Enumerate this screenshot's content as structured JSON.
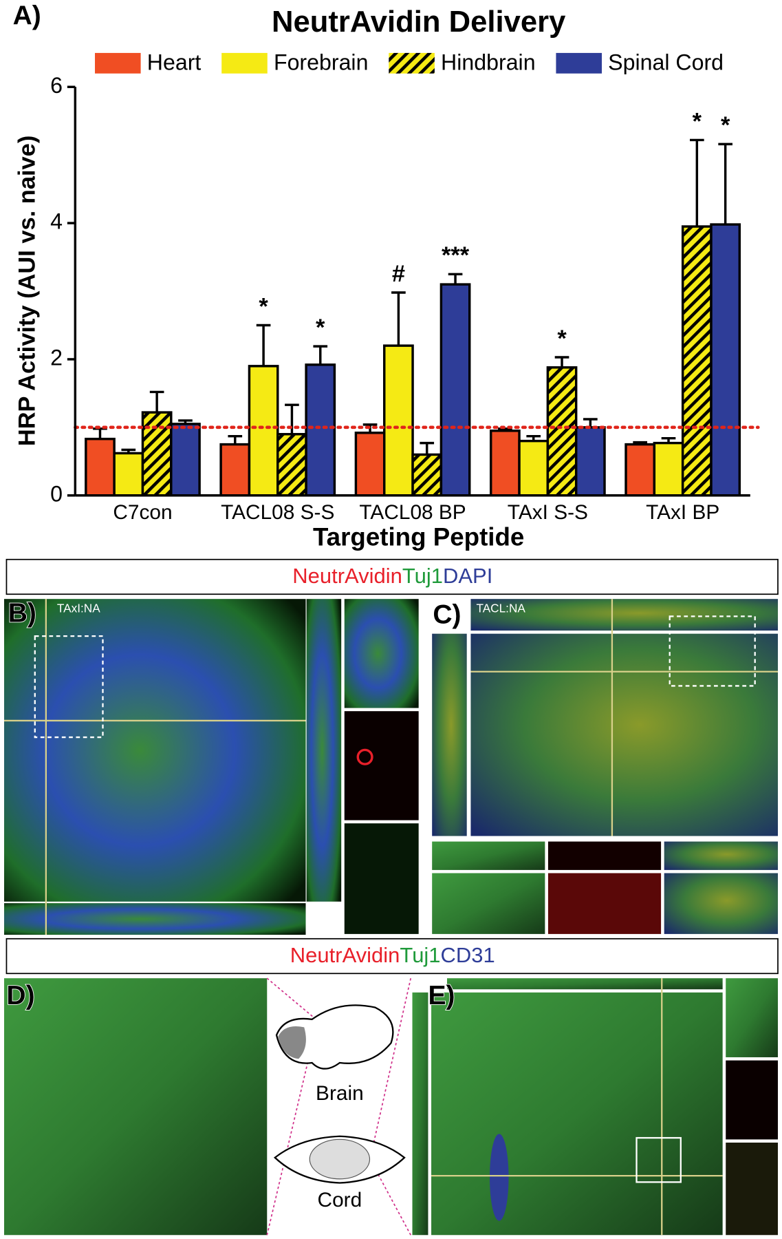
{
  "chart_data": {
    "type": "bar",
    "panel_label": "A)",
    "title": "NeutrAvidin Delivery",
    "x_label": "Targeting Peptide",
    "y_label": "HRP Activity (AUI vs. naive)",
    "categories": [
      "C7con",
      "TACL08 S-S",
      "TACL08 BP",
      "TAxI S-S",
      "TAxI BP"
    ],
    "series": [
      {
        "name": "Heart",
        "color": "#f04e23",
        "values": [
          0.83,
          0.75,
          0.92,
          0.95,
          0.75
        ],
        "errors": [
          0.15,
          0.12,
          0.12,
          0.03,
          0.03
        ],
        "markers": [
          null,
          null,
          null,
          null,
          null
        ]
      },
      {
        "name": "Forebrain",
        "color": "#f5ea14",
        "values": [
          0.62,
          1.9,
          2.2,
          0.8,
          0.77
        ],
        "errors": [
          0.05,
          0.6,
          0.78,
          0.07,
          0.07
        ],
        "markers": [
          null,
          "*",
          "#",
          null,
          null
        ]
      },
      {
        "name": "Hindbrain",
        "color": "#f5ea14",
        "hatch": true,
        "values": [
          1.22,
          0.9,
          0.6,
          1.88,
          3.95
        ],
        "errors": [
          0.3,
          0.43,
          0.17,
          0.15,
          1.27
        ],
        "markers": [
          null,
          null,
          null,
          "*",
          "*"
        ]
      },
      {
        "name": "Spinal Cord",
        "color": "#2e3d98",
        "values": [
          1.05,
          1.92,
          3.1,
          1.0,
          3.98
        ],
        "errors": [
          0.05,
          0.27,
          0.15,
          0.12,
          1.18
        ],
        "markers": [
          null,
          "*",
          "***",
          null,
          "*"
        ]
      }
    ],
    "ylim": [
      0,
      6
    ],
    "yticks": [
      0,
      2,
      4,
      6
    ],
    "reference_line": 1,
    "reference_color": "#e0251b"
  },
  "headers": [
    [
      "NeutrAvidin",
      "Tuj1",
      "DAPI"
    ],
    [
      "NeutrAvidin",
      "Tuj1",
      "CD31"
    ]
  ],
  "panels": {
    "b": {
      "label": "B)",
      "tag": "TAxI:NA"
    },
    "c": {
      "label": "C)",
      "tag": "TACL:NA"
    },
    "d": {
      "label": "D)"
    },
    "e": {
      "label": "E)"
    }
  },
  "schematic": {
    "brain": "Brain",
    "cord": "Cord"
  }
}
